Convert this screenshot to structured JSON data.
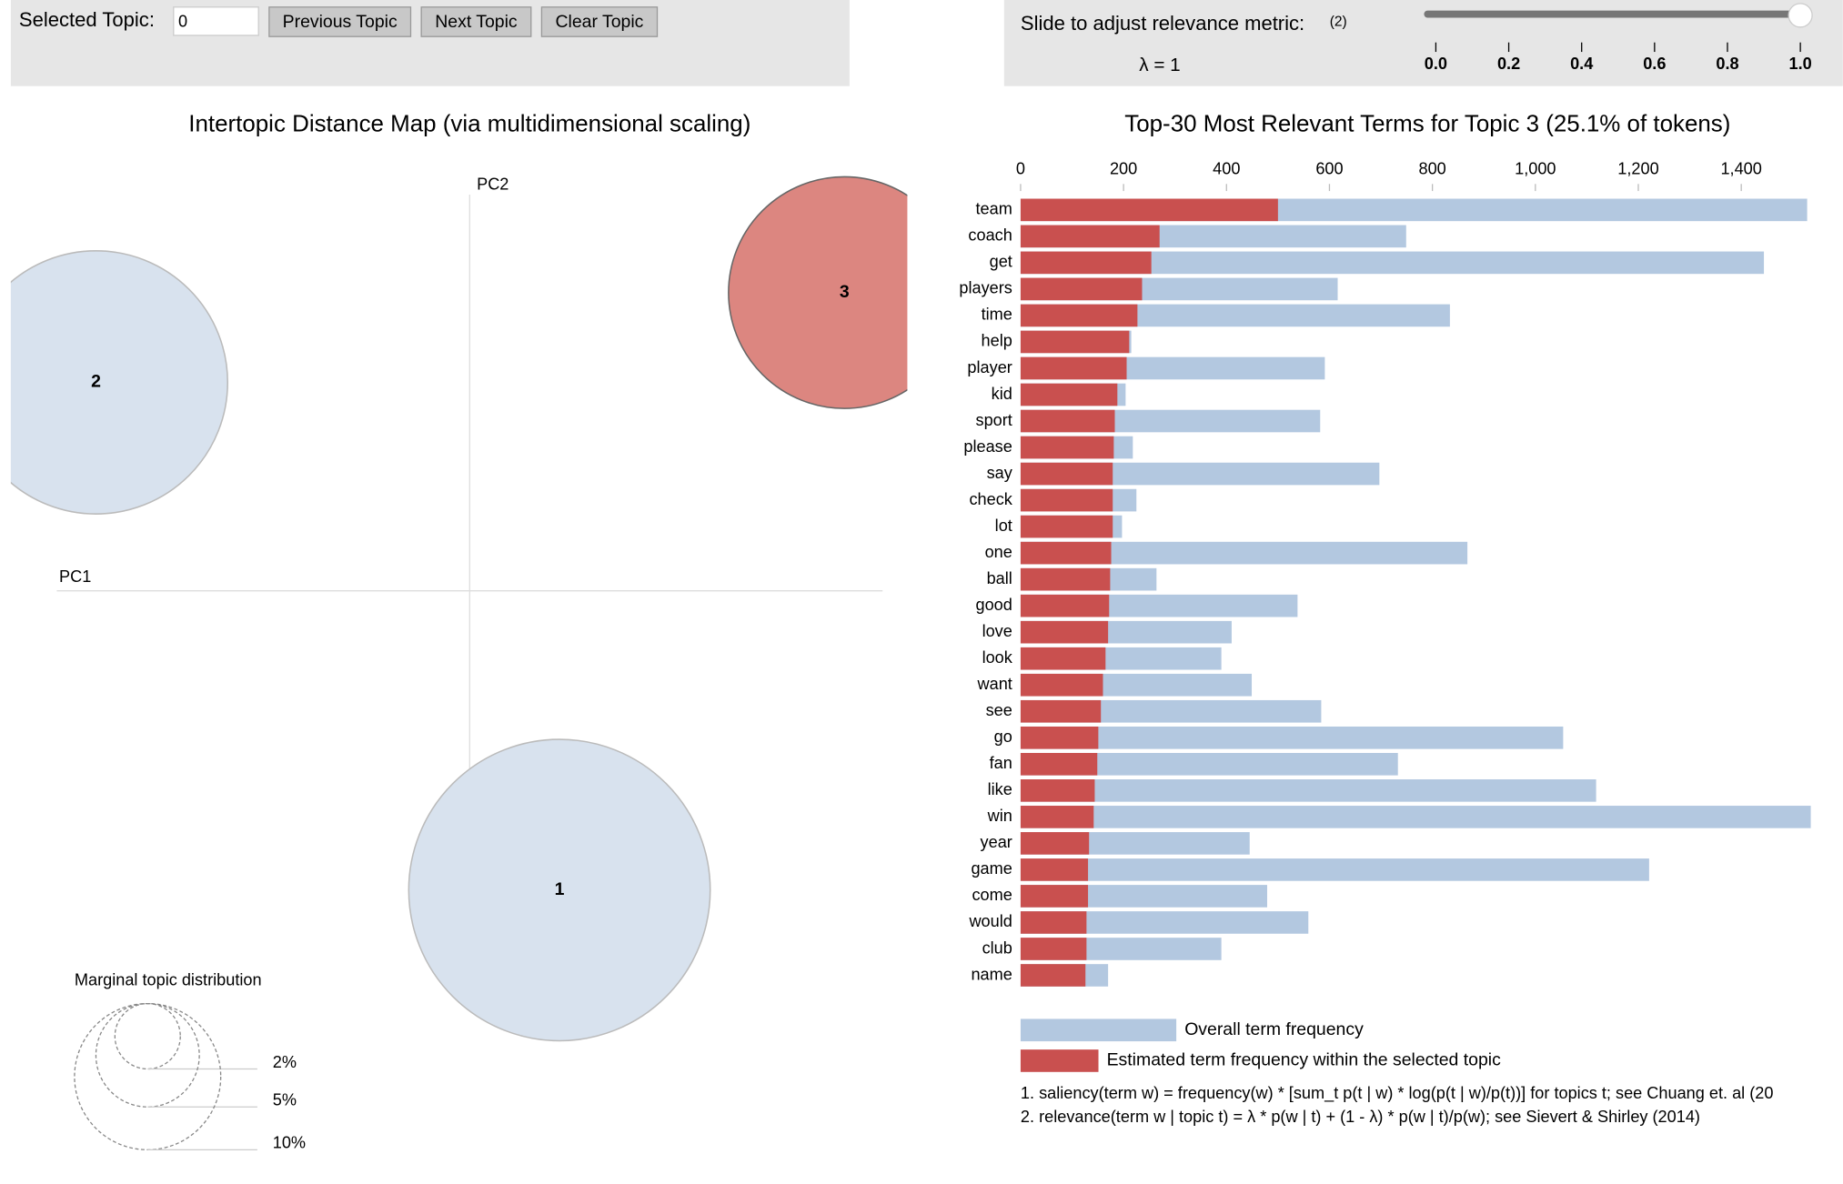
{
  "controls": {
    "selected_topic_label": "Selected Topic:",
    "selected_topic_value": "0",
    "buttons": [
      "Previous Topic",
      "Next Topic",
      "Clear Topic"
    ],
    "slider_label": "Slide to adjust relevance metric:",
    "slider_note": "(2)",
    "lambda": 1,
    "lambda_label": "λ = 1",
    "lambda_range": [
      0,
      1
    ],
    "lambda_ticks": [
      {
        "value": 0,
        "label": "0.0"
      },
      {
        "value": 0.2,
        "label": "0.2"
      },
      {
        "value": 0.4,
        "label": "0.4"
      },
      {
        "value": 0.6,
        "label": "0.6"
      },
      {
        "value": 0.8,
        "label": "0.8"
      },
      {
        "value": 1,
        "label": "1.0"
      }
    ]
  },
  "chart_data": [
    {
      "type": "scatter",
      "title": "Intertopic Distance Map (via multidimensional scaling)",
      "x_label": "PC1",
      "y_label": "PC2",
      "categories": [
        "1",
        "2",
        "3"
      ],
      "x": [
        0.087,
        -0.362,
        0.363
      ],
      "values": [
        -0.29,
        0.202,
        0.289
      ],
      "sizes": [
        42.5,
        32.4,
        25.1
      ],
      "colors": [
        "#d8e2ee",
        "#d8e2ee",
        "#dc8680"
      ],
      "xlim": [
        -0.4,
        0.4
      ],
      "ylim": [
        -0.4,
        0.4
      ],
      "size_legend_title": "Marginal topic distribution",
      "size_legend": [
        {
          "value": 2,
          "label": "2%"
        },
        {
          "value": 5,
          "label": "5%"
        },
        {
          "value": 10,
          "label": "10%"
        }
      ]
    },
    {
      "type": "bar",
      "orientation": "horizontal",
      "title": "Top-30 Most Relevant Terms for Topic 3 (25.1% of tokens)",
      "categories": [
        "team",
        "coach",
        "get",
        "players",
        "time",
        "help",
        "player",
        "kid",
        "sport",
        "please",
        "say",
        "check",
        "lot",
        "one",
        "ball",
        "good",
        "love",
        "look",
        "want",
        "see",
        "go",
        "fan",
        "like",
        "win",
        "year",
        "game",
        "come",
        "would",
        "club",
        "name"
      ],
      "series": [
        {
          "name": "Overall term frequency",
          "color": "#b3c8e0",
          "values": [
            1528,
            749,
            1444,
            616,
            834,
            215,
            591,
            204,
            582,
            218,
            697,
            225,
            197,
            868,
            264,
            538,
            410,
            390,
            449,
            584,
            1054,
            733,
            1118,
            1535,
            445,
            1221,
            479,
            559,
            390,
            170
          ]
        },
        {
          "name": "Estimated term frequency within the selected topic",
          "color": "#c9504f",
          "values": [
            500,
            270,
            254,
            236,
            227,
            211,
            206,
            188,
            183,
            181,
            179,
            179,
            179,
            176,
            174,
            172,
            170,
            165,
            160,
            156,
            151,
            149,
            144,
            142,
            133,
            131,
            131,
            128,
            128,
            126
          ]
        }
      ],
      "xlim": [
        0,
        1540
      ],
      "xticks": [
        0,
        200,
        400,
        600,
        800,
        {
          "value": 1000,
          "label": "1,000"
        },
        {
          "value": 1200,
          "label": "1,200"
        },
        {
          "value": 1400,
          "label": "1,400"
        }
      ],
      "notes": [
        "1. saliency(term w) = frequency(w) * [sum_t p(t | w) * log(p(t | w)/p(t))] for topics t; see Chuang et. al (20",
        "2. relevance(term w | topic t) = λ * p(w | t) + (1 - λ) * p(w | t)/p(w); see Sievert & Shirley (2014)"
      ]
    }
  ]
}
